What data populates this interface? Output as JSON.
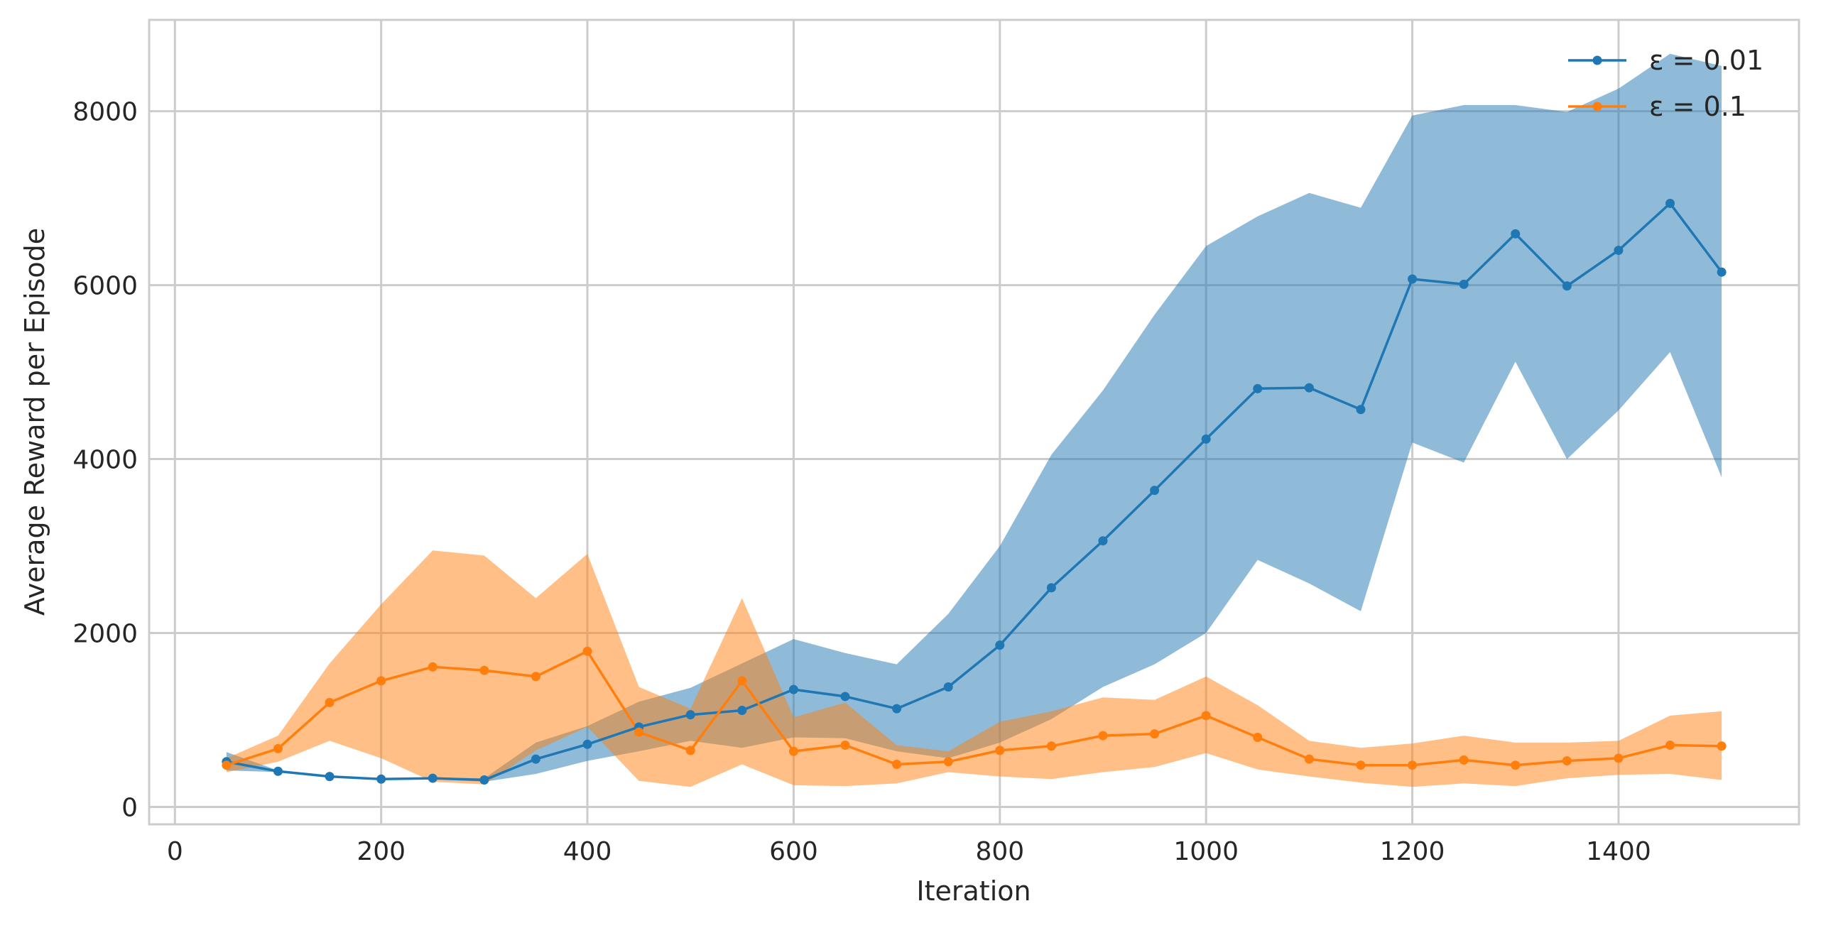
{
  "chart_data": {
    "type": "line",
    "xlabel": "Iteration",
    "ylabel": "Average Reward per Episode",
    "xlim": [
      -25,
      1575
    ],
    "ylim": [
      -200,
      9050
    ],
    "xticks": [
      0,
      200,
      400,
      600,
      800,
      1000,
      1200,
      1400
    ],
    "yticks": [
      0,
      2000,
      4000,
      6000,
      8000
    ],
    "grid": true,
    "legend_position": "top-right",
    "x": [
      50,
      100,
      150,
      200,
      250,
      300,
      350,
      400,
      450,
      500,
      550,
      600,
      650,
      700,
      750,
      800,
      850,
      900,
      950,
      1000,
      1050,
      1100,
      1150,
      1200,
      1250,
      1300,
      1350,
      1400,
      1450,
      1500
    ],
    "series": [
      {
        "name": "ε = 0.01",
        "color": "#1f77b4",
        "band_color": "#8fb9da",
        "values": [
          520,
          410,
          350,
          320,
          330,
          310,
          550,
          720,
          920,
          1060,
          1110,
          1350,
          1270,
          1130,
          1380,
          1860,
          2520,
          3060,
          3640,
          4230,
          4810,
          4820,
          4570,
          6070,
          6010,
          6590,
          5990,
          6400,
          6940,
          6150
        ],
        "upper": [
          630,
          420,
          360,
          330,
          340,
          330,
          740,
          930,
          1210,
          1370,
          1650,
          1930,
          1770,
          1640,
          2220,
          3000,
          4050,
          4790,
          5660,
          6450,
          6790,
          7060,
          6890,
          7950,
          8070,
          8070,
          7990,
          8260,
          8660,
          8520
        ],
        "lower": [
          420,
          400,
          340,
          310,
          320,
          290,
          380,
          530,
          640,
          760,
          680,
          800,
          790,
          640,
          560,
          740,
          1010,
          1380,
          1640,
          2000,
          2840,
          2570,
          2250,
          4190,
          3960,
          5120,
          4000,
          4560,
          5230,
          3790
        ]
      },
      {
        "name": "ε = 0.1",
        "color": "#ff7f0e",
        "band_color": "#ffbe86",
        "values": [
          480,
          670,
          1200,
          1450,
          1610,
          1570,
          1500,
          1790,
          860,
          650,
          1450,
          640,
          710,
          490,
          520,
          650,
          700,
          820,
          840,
          1050,
          800,
          550,
          480,
          480,
          540,
          480,
          530,
          560,
          710,
          700
        ],
        "upper": [
          560,
          820,
          1650,
          2330,
          2950,
          2890,
          2400,
          2910,
          1380,
          1130,
          2400,
          1030,
          1200,
          710,
          640,
          980,
          1100,
          1260,
          1230,
          1500,
          1170,
          760,
          680,
          730,
          820,
          740,
          740,
          760,
          1050,
          1100
        ],
        "lower": [
          400,
          520,
          760,
          560,
          290,
          260,
          650,
          920,
          300,
          230,
          490,
          250,
          240,
          270,
          400,
          350,
          320,
          400,
          460,
          620,
          430,
          350,
          280,
          230,
          270,
          240,
          330,
          370,
          380,
          310
        ]
      }
    ]
  }
}
